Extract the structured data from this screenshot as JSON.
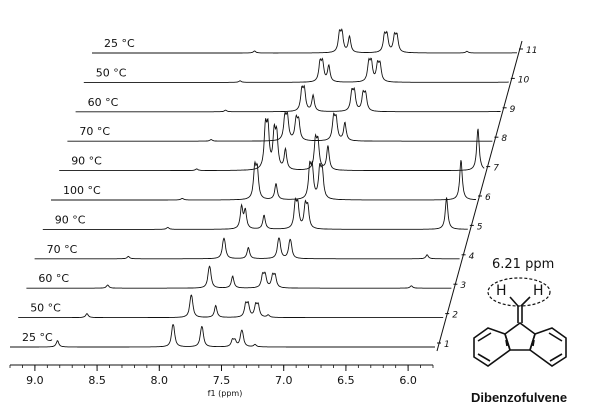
{
  "chart_data": {
    "type": "line",
    "subtype": "stacked-1H-NMR-waterfall",
    "xlabel": "f1 (ppm)",
    "x_reversed": true,
    "xlim": [
      9.2,
      5.8
    ],
    "x_ticks": [
      "9.0",
      "8.5",
      "8.0",
      "7.5",
      "7.0",
      "6.5",
      "6.0"
    ],
    "x_tick_values": [
      9.0,
      8.5,
      8.0,
      7.5,
      7.0,
      6.5,
      6.0
    ],
    "spectra": [
      {
        "index": "1",
        "temperature": "25 °C",
        "peaks": [
          {
            "ppm": 8.82,
            "h": 0.16
          },
          {
            "ppm": 7.9,
            "h": 0.33
          },
          {
            "ppm": 7.89,
            "h": 0.33
          },
          {
            "ppm": 7.67,
            "h": 0.3
          },
          {
            "ppm": 7.66,
            "h": 0.3
          },
          {
            "ppm": 7.42,
            "h": 0.16
          },
          {
            "ppm": 7.4,
            "h": 0.14
          },
          {
            "ppm": 7.35,
            "h": 0.24
          },
          {
            "ppm": 7.34,
            "h": 0.24
          },
          {
            "ppm": 7.24,
            "h": 0.06
          }
        ]
      },
      {
        "index": "2",
        "temperature": "50 °C",
        "peaks": [
          {
            "ppm": 8.65,
            "h": 0.1
          },
          {
            "ppm": 7.82,
            "h": 0.33
          },
          {
            "ppm": 7.81,
            "h": 0.33
          },
          {
            "ppm": 7.62,
            "h": 0.3
          },
          {
            "ppm": 7.38,
            "h": 0.3
          },
          {
            "ppm": 7.36,
            "h": 0.3
          },
          {
            "ppm": 7.3,
            "h": 0.28
          },
          {
            "ppm": 7.28,
            "h": 0.28
          },
          {
            "ppm": 7.2,
            "h": 0.06
          }
        ]
      },
      {
        "index": "3",
        "temperature": "60 °C",
        "peaks": [
          {
            "ppm": 8.55,
            "h": 0.08
          },
          {
            "ppm": 7.74,
            "h": 0.32
          },
          {
            "ppm": 7.73,
            "h": 0.32
          },
          {
            "ppm": 7.55,
            "h": 0.3
          },
          {
            "ppm": 7.31,
            "h": 0.3
          },
          {
            "ppm": 7.29,
            "h": 0.3
          },
          {
            "ppm": 7.23,
            "h": 0.28
          },
          {
            "ppm": 7.21,
            "h": 0.28
          },
          {
            "ppm": 6.12,
            "h": 0.06
          }
        ]
      },
      {
        "index": "4",
        "temperature": "70 °C",
        "peaks": [
          {
            "ppm": 8.45,
            "h": 0.06
          },
          {
            "ppm": 7.69,
            "h": 0.3
          },
          {
            "ppm": 7.68,
            "h": 0.3
          },
          {
            "ppm": 7.49,
            "h": 0.28
          },
          {
            "ppm": 7.25,
            "h": 0.3
          },
          {
            "ppm": 7.24,
            "h": 0.3
          },
          {
            "ppm": 7.16,
            "h": 0.28
          },
          {
            "ppm": 7.15,
            "h": 0.28
          },
          {
            "ppm": 6.06,
            "h": 0.1
          }
        ]
      },
      {
        "index": "5",
        "temperature": "90 °C",
        "peaks": [
          {
            "ppm": 8.2,
            "h": 0.05
          },
          {
            "ppm": 7.61,
            "h": 0.55
          },
          {
            "ppm": 7.58,
            "h": 0.45
          },
          {
            "ppm": 7.43,
            "h": 0.35
          },
          {
            "ppm": 7.18,
            "h": 0.6
          },
          {
            "ppm": 7.16,
            "h": 0.55
          },
          {
            "ppm": 7.1,
            "h": 0.55
          },
          {
            "ppm": 7.08,
            "h": 0.5
          },
          {
            "ppm": 5.97,
            "h": 0.8
          }
        ]
      },
      {
        "index": "6",
        "temperature": "100 °C",
        "peaks": [
          {
            "ppm": 8.15,
            "h": 0.04
          },
          {
            "ppm": 7.57,
            "h": 0.75
          },
          {
            "ppm": 7.55,
            "h": 0.7
          },
          {
            "ppm": 7.4,
            "h": 0.4
          },
          {
            "ppm": 7.13,
            "h": 0.75
          },
          {
            "ppm": 7.11,
            "h": 0.7
          },
          {
            "ppm": 7.05,
            "h": 0.7
          },
          {
            "ppm": 7.03,
            "h": 0.65
          },
          {
            "ppm": 5.92,
            "h": 1.0
          }
        ]
      },
      {
        "index": "7",
        "temperature": "90 °C",
        "peaks": [
          {
            "ppm": 8.1,
            "h": 0.04
          },
          {
            "ppm": 7.55,
            "h": 1.0
          },
          {
            "ppm": 7.53,
            "h": 0.95
          },
          {
            "ppm": 7.48,
            "h": 0.85
          },
          {
            "ppm": 7.46,
            "h": 0.8
          },
          {
            "ppm": 7.39,
            "h": 0.5
          },
          {
            "ppm": 7.15,
            "h": 0.7
          },
          {
            "ppm": 7.13,
            "h": 0.65
          },
          {
            "ppm": 7.05,
            "h": 0.6
          },
          {
            "ppm": 5.85,
            "h": 1.05
          }
        ]
      },
      {
        "index": "8",
        "temperature": "70 °C",
        "peaks": [
          {
            "ppm": 8.05,
            "h": 0.04
          },
          {
            "ppm": 7.46,
            "h": 0.55
          },
          {
            "ppm": 7.44,
            "h": 0.55
          },
          {
            "ppm": 7.37,
            "h": 0.5
          },
          {
            "ppm": 7.35,
            "h": 0.45
          },
          {
            "ppm": 7.07,
            "h": 0.55
          },
          {
            "ppm": 7.05,
            "h": 0.5
          },
          {
            "ppm": 6.98,
            "h": 0.45
          },
          {
            "ppm": 5.62,
            "h": 0.05
          }
        ]
      },
      {
        "index": "9",
        "temperature": "60 °C",
        "peaks": [
          {
            "ppm": 8.0,
            "h": 0.04
          },
          {
            "ppm": 7.39,
            "h": 0.5
          },
          {
            "ppm": 7.37,
            "h": 0.5
          },
          {
            "ppm": 7.3,
            "h": 0.4
          },
          {
            "ppm": 6.99,
            "h": 0.45
          },
          {
            "ppm": 6.97,
            "h": 0.45
          },
          {
            "ppm": 6.9,
            "h": 0.4
          },
          {
            "ppm": 6.88,
            "h": 0.4
          },
          {
            "ppm": 5.62,
            "h": 1.8
          }
        ]
      },
      {
        "index": "10",
        "temperature": "50 °C",
        "peaks": [
          {
            "ppm": 7.95,
            "h": 0.04
          },
          {
            "ppm": 7.31,
            "h": 0.45
          },
          {
            "ppm": 7.29,
            "h": 0.45
          },
          {
            "ppm": 7.24,
            "h": 0.4
          },
          {
            "ppm": 6.92,
            "h": 0.45
          },
          {
            "ppm": 6.9,
            "h": 0.45
          },
          {
            "ppm": 6.85,
            "h": 0.4
          },
          {
            "ppm": 6.83,
            "h": 0.4
          },
          {
            "ppm": 5.58,
            "h": 2.2
          }
        ]
      },
      {
        "index": "11",
        "temperature": "25 °C",
        "peaks": [
          {
            "ppm": 7.9,
            "h": 0.05
          },
          {
            "ppm": 7.22,
            "h": 0.45
          },
          {
            "ppm": 7.2,
            "h": 0.45
          },
          {
            "ppm": 7.14,
            "h": 0.4
          },
          {
            "ppm": 6.86,
            "h": 0.4
          },
          {
            "ppm": 6.84,
            "h": 0.4
          },
          {
            "ppm": 6.78,
            "h": 0.38
          },
          {
            "ppm": 6.76,
            "h": 0.38
          },
          {
            "ppm": 6.2,
            "h": 0.04
          },
          {
            "ppm": 5.52,
            "h": 2.4
          }
        ]
      }
    ]
  },
  "annotation": {
    "shift_label": "6.21 ppm",
    "h_left": "H",
    "h_right": "H",
    "compound_name": "Dibenzofulvene"
  },
  "colors": {
    "trace": "#111111",
    "axis": "#111111",
    "background": "#ffffff"
  }
}
